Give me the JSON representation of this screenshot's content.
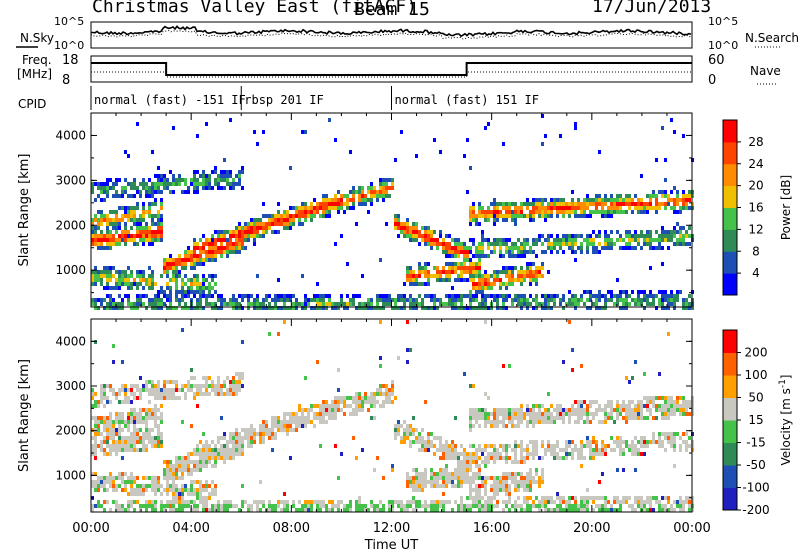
{
  "header": {
    "radar_title": "Christmas Valley East (fitACF)",
    "beam": "Beam 15",
    "date": "17/Jun/2013"
  },
  "top_panels": {
    "nsky_label": "N.Sky",
    "nsky_ticks": [
      "10^5",
      "10^0"
    ],
    "nsearch_label": "N.Search",
    "nsearch_ticks": [
      "10^5",
      "10^0"
    ],
    "freq_label_line1": "Freq.",
    "freq_label_line2": "[MHz]",
    "freq_ticks": [
      "18",
      "8"
    ],
    "nave_label": "Nave",
    "nave_ticks": [
      "60",
      "0"
    ],
    "cpid_label": "CPID",
    "cpid_segments": [
      {
        "label": "normal (fast) -151 IF",
        "start": 0,
        "end": 6
      },
      {
        "label": "rbsp 201 IF",
        "start": 6,
        "end": 12
      },
      {
        "label": "normal (fast) 151 IF",
        "start": 12,
        "end": 24
      }
    ]
  },
  "chart_data": [
    {
      "type": "heatmap",
      "name": "power-panel",
      "ylabel": "Slant Range [km]",
      "yticks": [
        "4000",
        "3000",
        "2000",
        "1000"
      ],
      "ylim": [
        180,
        4500
      ],
      "xlim": [
        0,
        24
      ],
      "colorbar_title": "Power [dB]",
      "colorbar_ticks": [
        "28",
        "24",
        "20",
        "16",
        "12",
        "8",
        "4"
      ],
      "colors": [
        "#0000ff",
        "#1e4fb5",
        "#2e8b57",
        "#45c24a",
        "#f0c000",
        "#ff8c00",
        "#ff4400",
        "#ff0000"
      ]
    },
    {
      "type": "heatmap",
      "name": "velocity-panel",
      "ylabel": "Slant Range [km]",
      "yticks": [
        "4000",
        "3000",
        "2000",
        "1000"
      ],
      "ylim": [
        180,
        4500
      ],
      "xlim": [
        0,
        24
      ],
      "xlabel": "Time UT",
      "xticks": [
        "00:00",
        "04:00",
        "08:00",
        "12:00",
        "16:00",
        "20:00",
        "00:00"
      ],
      "colorbar_title": "Velocity [m s",
      "colorbar_unit_sup": "-1",
      "colorbar_ticks": [
        "200",
        "100",
        "50",
        "15",
        "-15",
        "-50",
        "-100",
        "-200"
      ],
      "colors": [
        "#2020c0",
        "#1e4fb5",
        "#2e8b57",
        "#45c24a",
        "#c8c8c0",
        "#ffa000",
        "#ff6000",
        "#ff0000"
      ]
    }
  ]
}
